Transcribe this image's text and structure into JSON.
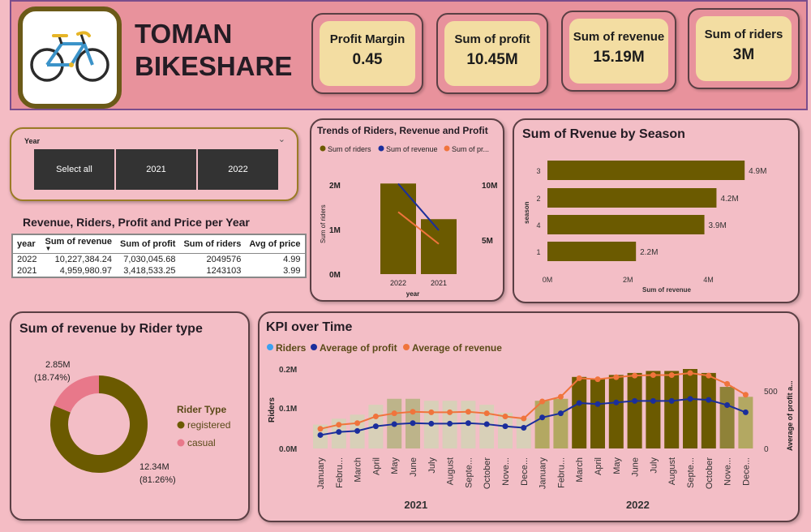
{
  "app": {
    "title_line1": "TOMAN",
    "title_line2": "BIKESHARE"
  },
  "kpis": [
    {
      "label": "Profit Margin",
      "value": "0.45"
    },
    {
      "label": "Sum of profit",
      "value": "10.45M"
    },
    {
      "label": "Sum of revenue",
      "value": "15.19M"
    },
    {
      "label": "Sum of riders",
      "value": "3M"
    }
  ],
  "slicer": {
    "label": "Year",
    "options": [
      "Select all",
      "2021",
      "2022"
    ]
  },
  "table": {
    "title": "Revenue, Riders, Profit and Price per Year",
    "columns": [
      "year",
      "Sum of revenue",
      "Sum of profit",
      "Sum of riders",
      "Avg of price"
    ],
    "rows": [
      [
        "2022",
        "10,227,384.24",
        "7,030,045.68",
        "2049576",
        "4.99"
      ],
      [
        "2021",
        "4,959,980.97",
        "3,418,533.25",
        "1243103",
        "3.99"
      ]
    ]
  },
  "colors": {
    "olive": "#6b5a00",
    "blue": "#1a2e9c",
    "orange": "#f0743c",
    "light_blue": "#3aa0f0",
    "pink": "#e8788a",
    "panel": "#f3bec6"
  },
  "chart_data": [
    {
      "type": "bar",
      "title": "Trends of Riders, Revenue and Profit",
      "legend": [
        "Sum of riders",
        "Sum of revenue",
        "Sum of pr..."
      ],
      "categories": [
        "2022",
        "2021"
      ],
      "series": [
        {
          "name": "Sum of riders",
          "values": [
            2049576,
            1243103
          ]
        },
        {
          "name": "Sum of revenue",
          "values": [
            10227384.24,
            4959980.97
          ]
        },
        {
          "name": "Sum of pr...",
          "values": [
            7030045.68,
            3418533.25
          ]
        }
      ],
      "xlabel": "year",
      "ylabel": "Sum of riders",
      "y_ticks": [
        "2M",
        "1M",
        "0M"
      ],
      "y2_ticks": [
        "10M",
        "5M"
      ]
    },
    {
      "type": "bar",
      "title": "Sum of Rvenue by Season",
      "categories": [
        "3",
        "2",
        "4",
        "1"
      ],
      "values": [
        4.9,
        4.2,
        3.9,
        2.2
      ],
      "data_labels": [
        "4.9M",
        "4.2M",
        "3.9M",
        "2.2M"
      ],
      "xlabel": "Sum of revenue",
      "ylabel": "season",
      "x_ticks": [
        "0M",
        "2M",
        "4M"
      ],
      "xlim": [
        0,
        5.4
      ]
    },
    {
      "type": "pie",
      "title": "Sum of revenue by Rider type",
      "legend_title": "Rider Type",
      "slices": [
        {
          "name": "registered",
          "value": 12.34,
          "label_value": "12.34M",
          "label_pct": "(81.26%)"
        },
        {
          "name": "casual",
          "value": 2.85,
          "label_value": "2.85M",
          "label_pct": "(18.74%)"
        }
      ]
    },
    {
      "type": "line",
      "title": "KPI over Time",
      "legend": [
        "Riders",
        "Average of profit",
        "Average of revenue"
      ],
      "ylabel": "Riders",
      "y2label": "Average of profit a...",
      "y_ticks": [
        "0.2M",
        "0.1M",
        "0.0M"
      ],
      "y2_ticks": [
        "500",
        "0"
      ],
      "months": [
        "January",
        "Febru...",
        "March",
        "April",
        "May",
        "June",
        "July",
        "August",
        "Septe...",
        "October",
        "Nove...",
        "Dece...",
        "January",
        "Febru...",
        "March",
        "April",
        "May",
        "June",
        "July",
        "August",
        "Septe...",
        "October",
        "Nove...",
        "Dece..."
      ],
      "years": [
        "2021",
        "2022"
      ],
      "riders": [
        0.06,
        0.075,
        0.085,
        0.11,
        0.125,
        0.125,
        0.12,
        0.12,
        0.12,
        0.11,
        0.09,
        0.075,
        0.12,
        0.125,
        0.18,
        0.175,
        0.185,
        0.19,
        0.195,
        0.195,
        0.2,
        0.19,
        0.155,
        0.13
      ],
      "avg_profit": [
        130,
        160,
        170,
        215,
        235,
        245,
        240,
        240,
        245,
        235,
        215,
        200,
        300,
        340,
        440,
        430,
        445,
        460,
        460,
        460,
        480,
        470,
        420,
        350
      ],
      "avg_revenue": [
        190,
        230,
        245,
        310,
        340,
        355,
        350,
        350,
        355,
        340,
        310,
        290,
        455,
        500,
        680,
        670,
        690,
        705,
        710,
        710,
        730,
        705,
        625,
        520
      ]
    }
  ]
}
